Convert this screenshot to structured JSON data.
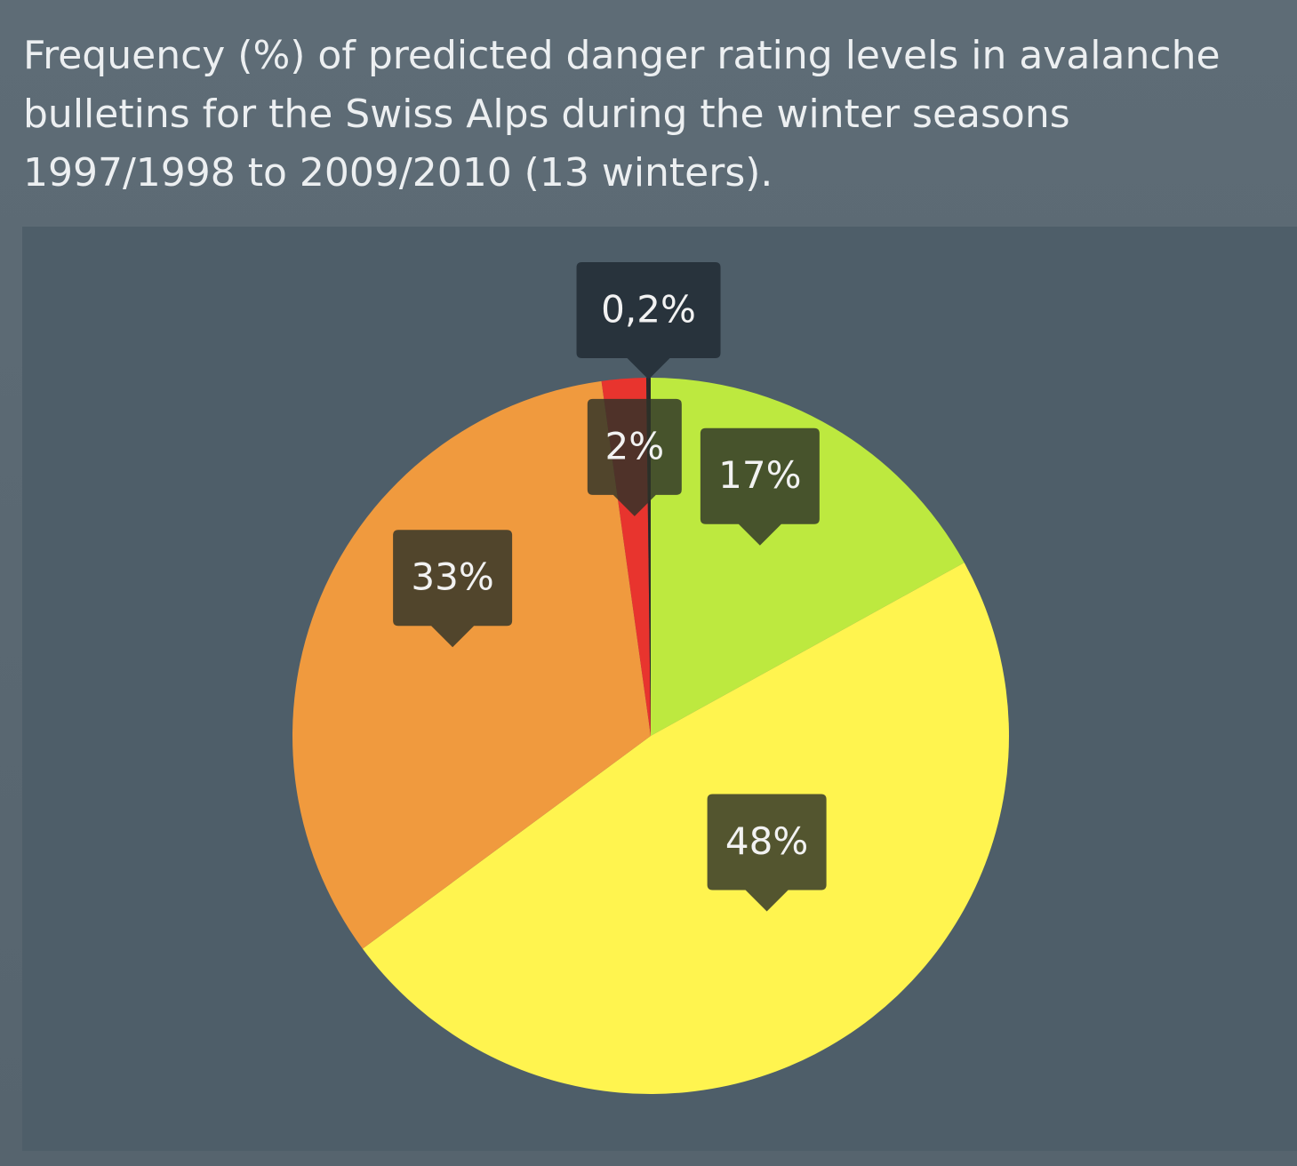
{
  "chart_data": {
    "type": "pie",
    "title": "Frequency (%) of predicted danger rating levels in avalanche bulletins for the Swiss Alps during the winter seasons 1997/1998 to 2009/2010 (13 winters).",
    "values": [
      17,
      48,
      33,
      2,
      0.2
    ],
    "value_labels": [
      "17%",
      "48%",
      "33%",
      "2%",
      "0,2%"
    ],
    "colors": [
      "#bde93f",
      "#fff44f",
      "#f09a3e",
      "#e8342e",
      "#2a2a2a"
    ]
  }
}
